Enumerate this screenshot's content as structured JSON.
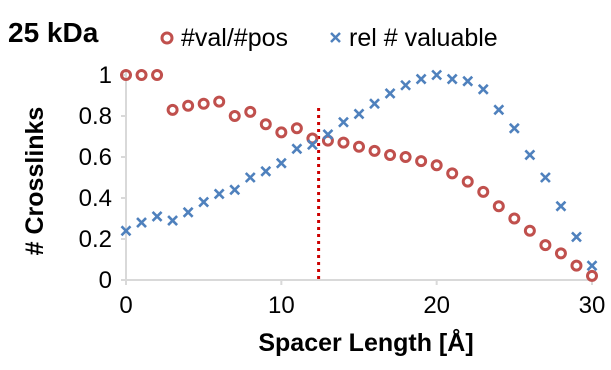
{
  "chart_data": {
    "type": "scatter",
    "title": "25 kDa",
    "xlabel": "Spacer Length [Å]",
    "ylabel": "# Crosslinks",
    "xlim": [
      0,
      30
    ],
    "ylim": [
      0,
      1
    ],
    "xticks": [
      0,
      10,
      20,
      30
    ],
    "yticks": [
      0,
      0.2,
      0.4,
      0.6,
      0.8,
      1
    ],
    "ytick_labels": [
      "0",
      "0.2",
      "0.4",
      "0.6",
      "0.8",
      "1"
    ],
    "grid": false,
    "legend_position": "top",
    "vline": {
      "x": 12.4,
      "style": "dotted",
      "color": "#cc0000"
    },
    "series": [
      {
        "name": "#val/#pos",
        "marker": "circle",
        "color": "#c0504d",
        "x": [
          0,
          1,
          2,
          3,
          4,
          5,
          6,
          7,
          8,
          9,
          10,
          11,
          12,
          13,
          14,
          15,
          16,
          17,
          18,
          19,
          20,
          21,
          22,
          23,
          24,
          25,
          26,
          27,
          28,
          29,
          30
        ],
        "y": [
          1.0,
          1.0,
          1.0,
          0.83,
          0.85,
          0.86,
          0.87,
          0.8,
          0.82,
          0.76,
          0.72,
          0.74,
          0.69,
          0.68,
          0.67,
          0.65,
          0.63,
          0.61,
          0.6,
          0.58,
          0.56,
          0.52,
          0.48,
          0.43,
          0.36,
          0.3,
          0.24,
          0.17,
          0.13,
          0.07,
          0.02
        ]
      },
      {
        "name": "rel # valuable",
        "marker": "x",
        "color": "#4f81bd",
        "x": [
          0,
          1,
          2,
          3,
          4,
          5,
          6,
          7,
          8,
          9,
          10,
          11,
          12,
          13,
          14,
          15,
          16,
          17,
          18,
          19,
          20,
          21,
          22,
          23,
          24,
          25,
          26,
          27,
          28,
          29,
          30
        ],
        "y": [
          0.24,
          0.28,
          0.31,
          0.29,
          0.33,
          0.38,
          0.42,
          0.44,
          0.5,
          0.53,
          0.57,
          0.64,
          0.66,
          0.71,
          0.77,
          0.81,
          0.86,
          0.91,
          0.95,
          0.98,
          1.0,
          0.98,
          0.97,
          0.93,
          0.83,
          0.74,
          0.61,
          0.5,
          0.36,
          0.21,
          0.07
        ]
      }
    ]
  },
  "colors": {
    "axis": "#d9d9d9",
    "tick_text": "#000000"
  }
}
